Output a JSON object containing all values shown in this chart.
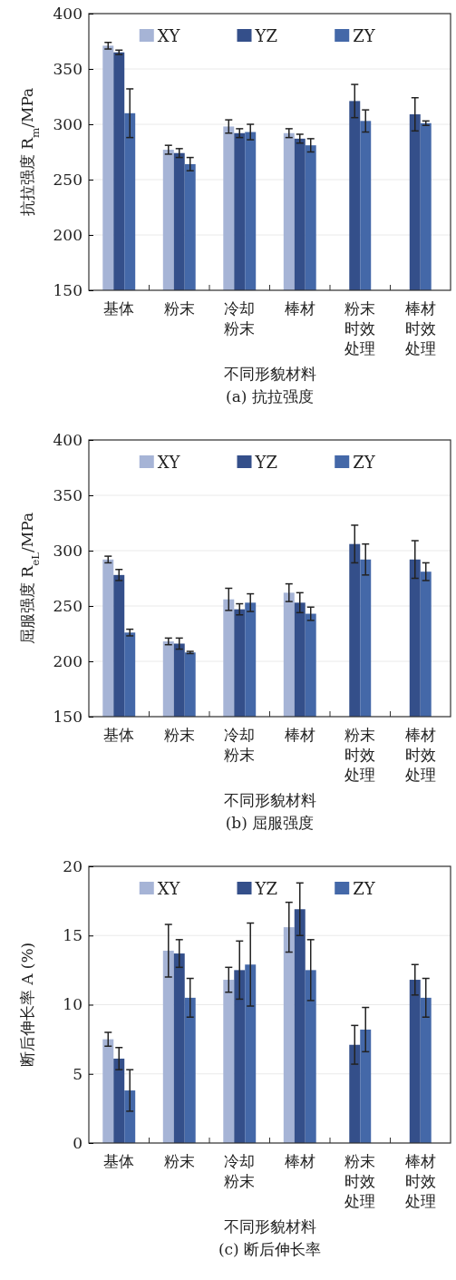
{
  "chart_data": [
    {
      "type": "bar",
      "title": "(a) 抗拉强度",
      "xlabel": "不同形貌材料",
      "ylabel": "抗拉强度 R$_{m}$/MPa",
      "categories": [
        "基体",
        "粉末",
        "冷却粉末",
        "棒材",
        "粉末时效处理",
        "棒材时效处理"
      ],
      "ylim": [
        150,
        400
      ],
      "yticks": [
        150,
        200,
        250,
        300,
        350,
        400
      ],
      "grid": "y",
      "legend": "top",
      "series": [
        {
          "name": "XY",
          "color": "#a6b4d6",
          "values": [
            371,
            277,
            298,
            292,
            null,
            null
          ],
          "errors": [
            3,
            4,
            6,
            4,
            null,
            null
          ]
        },
        {
          "name": "YZ",
          "color": "#344f8a",
          "values": [
            365,
            274,
            292,
            287,
            321,
            309
          ],
          "errors": [
            2,
            4,
            4,
            4,
            15,
            15
          ]
        },
        {
          "name": "ZY",
          "color": "#4468a8",
          "values": [
            310,
            264,
            293,
            281,
            303,
            301
          ],
          "errors": [
            22,
            6,
            7,
            6,
            10,
            2
          ]
        }
      ]
    },
    {
      "type": "bar",
      "title": "(b) 屈服强度",
      "xlabel": "不同形貌材料",
      "ylabel": "屈服强度 R$_{eL}$/MPa",
      "categories": [
        "基体",
        "粉末",
        "冷却粉末",
        "棒材",
        "粉末时效处理",
        "棒材时效处理"
      ],
      "ylim": [
        150,
        400
      ],
      "yticks": [
        150,
        200,
        250,
        300,
        350,
        400
      ],
      "grid": "y",
      "legend": "top",
      "series": [
        {
          "name": "XY",
          "color": "#a6b4d6",
          "values": [
            292,
            218,
            256,
            262,
            null,
            null
          ],
          "errors": [
            3,
            3,
            10,
            8,
            null,
            null
          ]
        },
        {
          "name": "YZ",
          "color": "#344f8a",
          "values": [
            278,
            216,
            247,
            253,
            306,
            292
          ],
          "errors": [
            5,
            5,
            5,
            9,
            17,
            17
          ]
        },
        {
          "name": "ZY",
          "color": "#4468a8",
          "values": [
            226,
            208,
            253,
            243,
            292,
            281
          ],
          "errors": [
            3,
            1,
            8,
            6,
            14,
            8
          ]
        }
      ]
    },
    {
      "type": "bar",
      "title": "(c) 断后伸长率",
      "xlabel": "不同形貌材料",
      "ylabel": "断后伸长率 A (%)",
      "categories": [
        "基体",
        "粉末",
        "冷却粉末",
        "棒材",
        "粉末时效处理",
        "棒材时效处理"
      ],
      "ylim": [
        0,
        20
      ],
      "yticks": [
        0,
        5,
        10,
        15,
        20
      ],
      "grid": "y",
      "legend": "top",
      "series": [
        {
          "name": "XY",
          "color": "#a6b4d6",
          "values": [
            7.5,
            13.9,
            11.8,
            15.6,
            null,
            null
          ],
          "errors": [
            0.5,
            1.9,
            0.9,
            1.8,
            null,
            null
          ]
        },
        {
          "name": "YZ",
          "color": "#344f8a",
          "values": [
            6.1,
            13.7,
            12.5,
            16.9,
            7.1,
            11.8
          ],
          "errors": [
            0.8,
            1,
            2.1,
            1.9,
            1.4,
            1.1
          ]
        },
        {
          "name": "ZY",
          "color": "#4468a8",
          "values": [
            3.8,
            10.5,
            12.9,
            12.5,
            8.2,
            10.5
          ],
          "errors": [
            1.5,
            1.4,
            3,
            2.2,
            1.6,
            1.4
          ]
        }
      ]
    }
  ]
}
